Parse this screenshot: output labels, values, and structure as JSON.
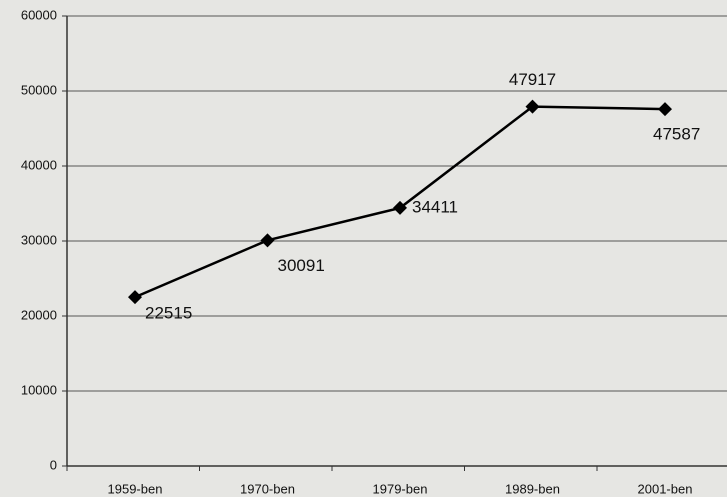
{
  "chart_data": {
    "type": "line",
    "categories": [
      "1959-ben",
      "1970-ben",
      "1979-ben",
      "1989-ben",
      "2001-ben"
    ],
    "values": [
      22515,
      30091,
      34411,
      47917,
      47587
    ],
    "color": "#000000",
    "ylim": [
      0,
      60000
    ],
    "yticks": [
      0,
      10000,
      20000,
      30000,
      40000,
      50000,
      60000
    ],
    "grid": true
  }
}
